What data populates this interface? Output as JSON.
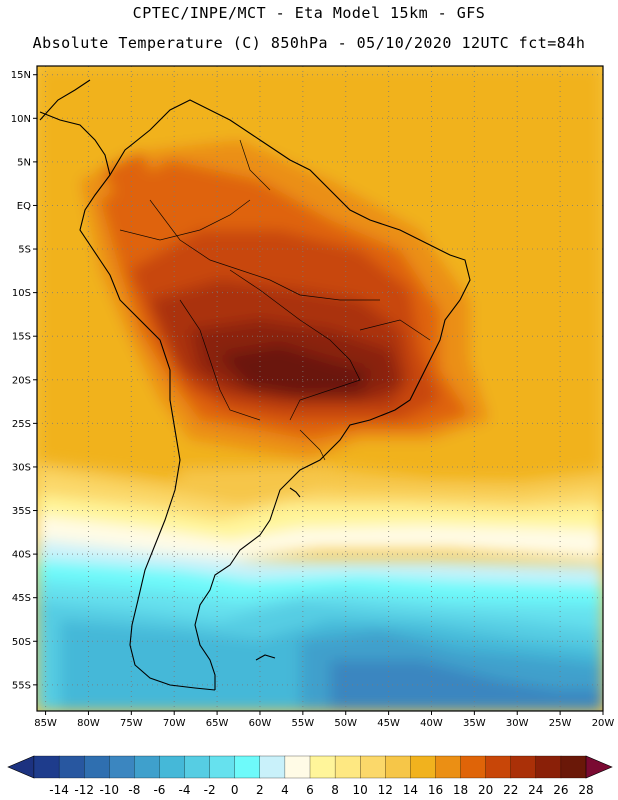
{
  "header": {
    "line1": "CPTEC/INPE/MCT -  Eta Model 15km - GFS",
    "line2": "Absolute Temperature (C) 850hPa - 05/10/2020 12UTC fct=84h"
  },
  "map": {
    "lat_labels": [
      "15N",
      "10N",
      "5N",
      "EQ",
      "5S",
      "10S",
      "15S",
      "20S",
      "25S",
      "30S",
      "35S",
      "40S",
      "45S",
      "50S",
      "55S"
    ],
    "lon_labels": [
      "85W",
      "80W",
      "75W",
      "70W",
      "65W",
      "60W",
      "55W",
      "50W",
      "45W",
      "40W",
      "35W",
      "30W",
      "25W",
      "20W"
    ],
    "lat_range": [
      -58,
      16
    ],
    "lon_range": [
      -86,
      -20
    ],
    "grid": "dotted"
  },
  "colorbar": {
    "ticks": [
      "-14",
      "-12",
      "-10",
      "-8",
      "-6",
      "-4",
      "-2",
      "0",
      "2",
      "4",
      "6",
      "8",
      "10",
      "12",
      "14",
      "16",
      "18",
      "20",
      "22",
      "24",
      "26",
      "28"
    ],
    "colors": [
      "#1e3c8c",
      "#2857a0",
      "#2f6fb0",
      "#3b86c0",
      "#3fa0cc",
      "#45b8d8",
      "#56cde3",
      "#66e1ee",
      "#6efafa",
      "#c9f1fa",
      "#fffbe6",
      "#fff59a",
      "#fee882",
      "#fbd86a",
      "#f6c648",
      "#f1b21e",
      "#eb8f14",
      "#df6408",
      "#c84608",
      "#aa3008",
      "#8a2008",
      "#6a1808"
    ],
    "min_color": "#1c3280",
    "max_color": "#7a0a32"
  },
  "field_colors": {
    "t14": "#f6c648",
    "t16": "#f1b21e",
    "t18": "#eb8f14",
    "t20": "#df6408",
    "t22": "#c84608",
    "t24": "#aa3008",
    "t26": "#8a2008",
    "t28": "#6a1808",
    "t12": "#fbd86a",
    "t10": "#fee882",
    "t8": "#fff59a",
    "t6": "#fffbe6",
    "t4": "#c9f1fa",
    "t2": "#6efafa",
    "t0": "#66e1ee",
    "tm2": "#56cde3",
    "tm4": "#45b8d8",
    "tm6": "#3fa0cc",
    "tm8": "#3b86c0"
  }
}
